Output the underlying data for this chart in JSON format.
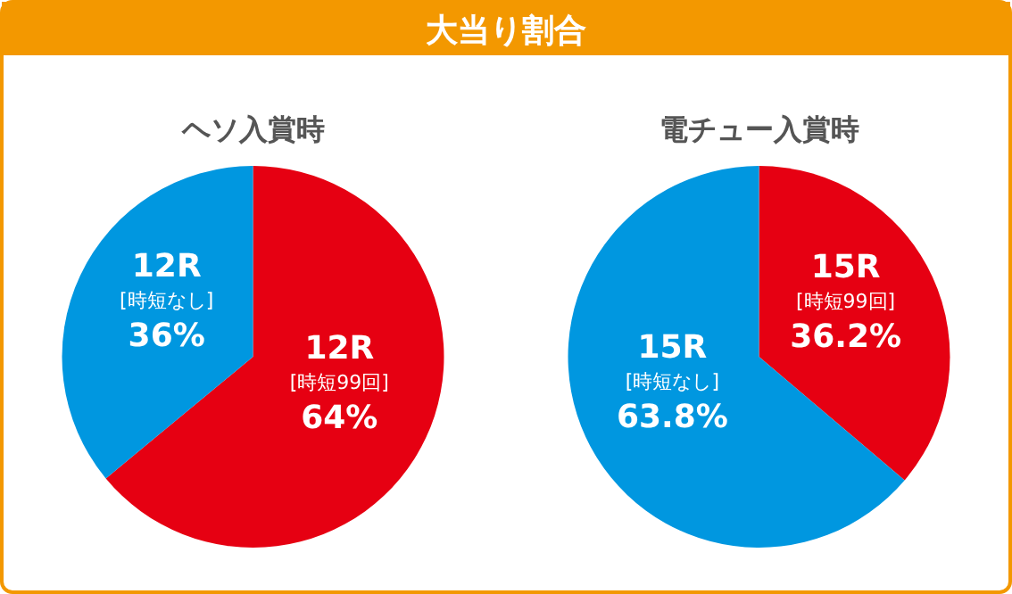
{
  "chart_data": [
    {
      "type": "other",
      "title": "大当り割合"
    },
    {
      "type": "pie",
      "title": "ヘソ入賞時",
      "categories": [
        "12R [時短99回]",
        "12R [時短なし]"
      ],
      "values": [
        64,
        36
      ],
      "colors": [
        "#e60012",
        "#0097e0"
      ],
      "value_labels": [
        "64%",
        "36%"
      ]
    },
    {
      "type": "pie",
      "title": "電チュー入賞時",
      "categories": [
        "15R [時短99回]",
        "15R [時短なし]"
      ],
      "values": [
        36.2,
        63.8
      ],
      "colors": [
        "#e60012",
        "#0097e0"
      ],
      "value_labels": [
        "36.2%",
        "63.8%"
      ]
    }
  ]
}
